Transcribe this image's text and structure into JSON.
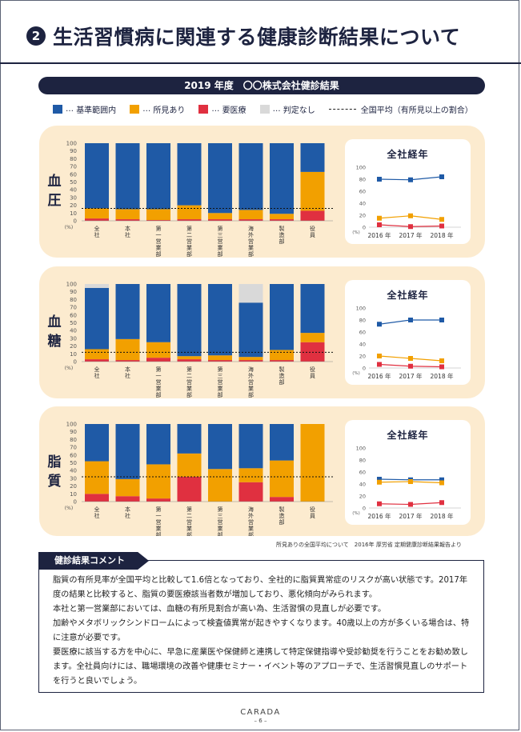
{
  "header": {
    "number": "2",
    "title": "生活習慣病に関連する健康診断結果について"
  },
  "banner": {
    "title": "2019 年度　〇〇株式会社健診結果"
  },
  "legend": {
    "normal": "基準範囲内",
    "finding": "所見あり",
    "treatment": "要医療",
    "undetermined": "判定なし",
    "national": "全国平均（有所見以上の割合）",
    "dots": "…"
  },
  "colors": {
    "normal": "#1f5aa6",
    "finding": "#f2a000",
    "treatment": "#e03040",
    "undetermined": "#d9d9d9",
    "panel_bg": "#fcebcf",
    "navy": "#1d2340"
  },
  "chart_data": [
    {
      "type": "bar",
      "stacked": true,
      "label": "血圧",
      "ylim": [
        0,
        100
      ],
      "yticks": [
        0,
        10,
        20,
        30,
        40,
        50,
        60,
        70,
        80,
        90,
        100
      ],
      "yunit": "(%)",
      "categories": [
        "全社",
        "本社",
        "第一営業部",
        "第二営業部",
        "第三営業部",
        "海外営業部",
        "製造部",
        "役員"
      ],
      "series": [
        {
          "name": "要医療",
          "values": [
            3,
            2,
            1,
            2,
            2,
            2,
            2,
            13
          ]
        },
        {
          "name": "所見あり",
          "values": [
            13,
            13,
            14,
            18,
            8,
            12,
            7,
            50
          ]
        },
        {
          "name": "基準範囲内",
          "values": [
            84,
            85,
            85,
            80,
            90,
            86,
            91,
            37
          ]
        },
        {
          "name": "判定なし",
          "values": [
            0,
            0,
            0,
            0,
            0,
            0,
            0,
            0
          ]
        }
      ],
      "national_average": 16,
      "trend": {
        "title": "全社経年",
        "x": [
          "2016 年",
          "2017 年",
          "2018 年"
        ],
        "ylim": [
          0,
          100
        ],
        "yticks": [
          0,
          20,
          40,
          60,
          80,
          100
        ],
        "yunit": "(%)",
        "series": [
          {
            "name": "基準範囲内",
            "values": [
              80,
              79,
              84
            ]
          },
          {
            "name": "所見あり",
            "values": [
              15,
              19,
              13
            ]
          },
          {
            "name": "要医療",
            "values": [
              4,
              1,
              2
            ]
          }
        ]
      }
    },
    {
      "type": "bar",
      "stacked": true,
      "label": "血糖",
      "ylim": [
        0,
        100
      ],
      "yticks": [
        0,
        10,
        20,
        30,
        40,
        50,
        60,
        70,
        80,
        90,
        100
      ],
      "yunit": "(%)",
      "categories": [
        "全社",
        "本社",
        "第一営業部",
        "第二営業部",
        "第三営業部",
        "海外営業部",
        "製造部",
        "役員"
      ],
      "series": [
        {
          "name": "要医療",
          "values": [
            3,
            2,
            5,
            3,
            2,
            2,
            2,
            25
          ]
        },
        {
          "name": "所見あり",
          "values": [
            13,
            27,
            20,
            4,
            6,
            4,
            13,
            12
          ]
        },
        {
          "name": "基準範囲内",
          "values": [
            79,
            71,
            75,
            93,
            92,
            70,
            85,
            63
          ]
        },
        {
          "name": "判定なし",
          "values": [
            5,
            0,
            0,
            0,
            0,
            24,
            0,
            0
          ]
        }
      ],
      "national_average": 12,
      "trend": {
        "title": "全社経年",
        "x": [
          "2016 年",
          "2017 年",
          "2018 年"
        ],
        "ylim": [
          0,
          100
        ],
        "yticks": [
          0,
          20,
          40,
          60,
          80,
          100
        ],
        "yunit": "(%)",
        "series": [
          {
            "name": "基準範囲内",
            "values": [
              73,
              80,
              80
            ]
          },
          {
            "name": "所見あり",
            "values": [
              20,
              16,
              12
            ]
          },
          {
            "name": "要医療",
            "values": [
              6,
              3,
              2
            ]
          }
        ]
      }
    },
    {
      "type": "bar",
      "stacked": true,
      "label": "脂質",
      "ylim": [
        0,
        100
      ],
      "yticks": [
        0,
        10,
        20,
        30,
        40,
        50,
        60,
        70,
        80,
        90,
        100
      ],
      "yunit": "(%)",
      "categories": [
        "全社",
        "本社",
        "第一営業部",
        "第二営業部",
        "第三営業部",
        "海外営業部",
        "製造部",
        "役員"
      ],
      "series": [
        {
          "name": "要医療",
          "values": [
            10,
            7,
            4,
            32,
            0,
            25,
            6,
            0
          ]
        },
        {
          "name": "所見あり",
          "values": [
            42,
            22,
            44,
            30,
            42,
            18,
            47,
            100
          ]
        },
        {
          "name": "基準範囲内",
          "values": [
            48,
            71,
            52,
            38,
            58,
            57,
            47,
            0
          ]
        },
        {
          "name": "判定なし",
          "values": [
            0,
            0,
            0,
            0,
            0,
            0,
            0,
            0
          ]
        }
      ],
      "national_average": 32,
      "trend": {
        "title": "全社経年",
        "x": [
          "2016 年",
          "2017 年",
          "2018 年"
        ],
        "ylim": [
          0,
          100
        ],
        "yticks": [
          0,
          20,
          40,
          60,
          80,
          100
        ],
        "yunit": "(%)",
        "series": [
          {
            "name": "基準範囲内",
            "values": [
              48,
              47,
              47
            ]
          },
          {
            "name": "所見あり",
            "values": [
              43,
              44,
              42
            ]
          },
          {
            "name": "要医療",
            "values": [
              7,
              6,
              9
            ]
          }
        ]
      }
    }
  ],
  "source_note": "所見ありの全国平均について　2016年 厚労省 定期健康診断結果報告より",
  "comment": {
    "title": "健診結果コメント",
    "paragraphs": [
      "脂質の有所見率が全国平均と比較して1.6倍となっており、全社的に脂質異常症のリスクが高い状態です。2017年度の結果と比較すると、脂質の要医療該当者数が増加しており、悪化傾向がみられます。",
      "本社と第一営業部においては、血糖の有所見割合が高い為、生活習慣の見直しが必要です。",
      "加齢やメタボリックシンドロームによって検査値異常が起きやすくなります。40歳以上の方が多くいる場合は、特に注意が必要です。",
      "要医療に該当する方を中心に、早急に産業医や保健師と連携して特定保健指導や受診勧奨を行うことをお勧め致します。全社員向けには、職場環境の改善や健康セミナー・イベント等のアプローチで、生活習慣見直しのサポートを行うと良いでしょう。"
    ]
  },
  "footer": {
    "logo": "CARADA",
    "page": "– 6 –"
  }
}
